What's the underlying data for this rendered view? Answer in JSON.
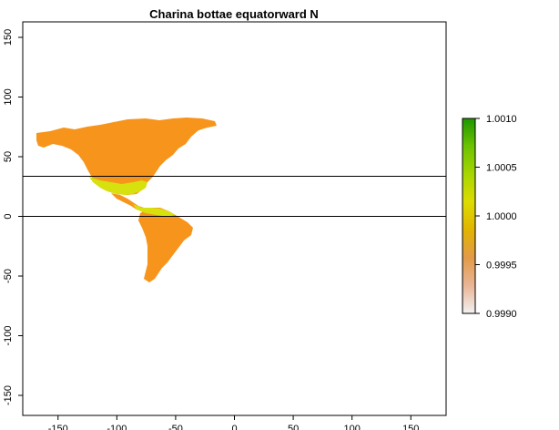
{
  "map": {
    "title": "Charina bottae equatorward N",
    "y_ticks": [
      {
        "value": 150,
        "label": "150"
      },
      {
        "value": 100,
        "label": "100"
      },
      {
        "value": 50,
        "label": "50"
      },
      {
        "value": 0,
        "label": "0"
      },
      {
        "value": -50,
        "label": "-50"
      },
      {
        "value": -100,
        "label": "-100"
      },
      {
        "value": -150,
        "label": "-150"
      }
    ],
    "x_ticks": [
      {
        "value": -150,
        "label": "-150"
      },
      {
        "value": -100,
        "label": "-100"
      },
      {
        "value": -50,
        "label": "-50"
      },
      {
        "value": 0,
        "label": "0"
      },
      {
        "value": 50,
        "label": "50"
      },
      {
        "value": 100,
        "label": "100"
      },
      {
        "value": 150,
        "label": "150"
      }
    ],
    "reference_lines_latitude": [
      35,
      0
    ],
    "colors": {
      "land_base": "#F7941B",
      "range_highlight": "#D7E10E",
      "line": "#000000"
    }
  },
  "legend": {
    "ticks": [
      {
        "value": 1.001,
        "label": "1.0010"
      },
      {
        "value": 1.0005,
        "label": "1.0005"
      },
      {
        "value": 1.0,
        "label": "1.0000"
      },
      {
        "value": 0.9995,
        "label": "0.9995"
      },
      {
        "value": 0.999,
        "label": "0.9990"
      }
    ],
    "range": [
      0.999,
      1.001
    ],
    "gradient": [
      "#F2F2F2",
      "#E9B595",
      "#E39A49",
      "#E2B400",
      "#DCDC00",
      "#A8D600",
      "#6CC300",
      "#1E9600"
    ]
  }
}
